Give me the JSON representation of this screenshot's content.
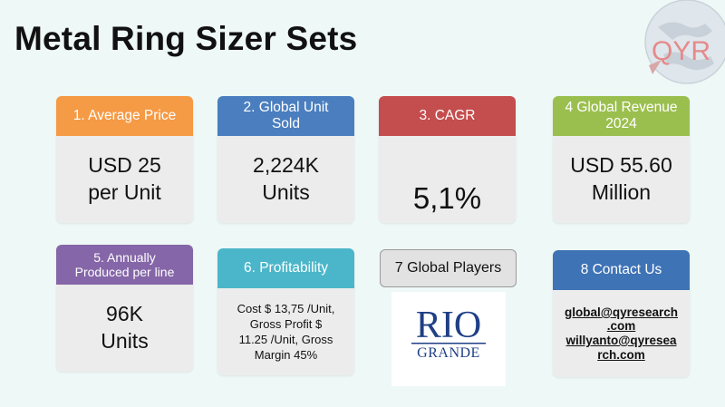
{
  "title": "Metal Ring Sizer Sets",
  "logo_text": "QYR",
  "cards": {
    "avg_price": {
      "header": "1. Average Price",
      "lines": [
        "USD 25",
        "per Unit"
      ]
    },
    "unit_sold": {
      "header_lines": [
        "2. Global Unit",
        "Sold"
      ],
      "lines": [
        "2,224K",
        "Units"
      ]
    },
    "cagr": {
      "header": "3. CAGR",
      "value": "5,1%"
    },
    "revenue": {
      "header_lines": [
        "4 Global Revenue",
        "2024"
      ],
      "lines": [
        "USD 55.60",
        "Million"
      ]
    },
    "produced": {
      "header_lines": [
        "5. Annually",
        "Produced per line"
      ],
      "lines": [
        "96K",
        "Units"
      ]
    },
    "profit": {
      "header": "6. Profitability",
      "lines": [
        "Cost $ 13,75 /Unit,",
        "Gross Profit $",
        "11.25 /Unit, Gross",
        "Margin 45%"
      ]
    },
    "players": {
      "header": "7 Global Players",
      "brand_top": "RIO",
      "brand_bottom": "GRANDE"
    },
    "contact": {
      "header": "8 Contact Us",
      "emails": [
        "global@qyresearch",
        ".com",
        "willyanto@qyresea",
        "rch.com"
      ]
    }
  },
  "colors": {
    "orange": "#f59a45",
    "blue": "#4a7ebf",
    "red": "#c44d4d",
    "green": "#9bbf4f",
    "purple": "#8566a8",
    "teal": "#4bb6c9",
    "navy": "#3e73b6",
    "riogrande": "#1f3f86"
  }
}
